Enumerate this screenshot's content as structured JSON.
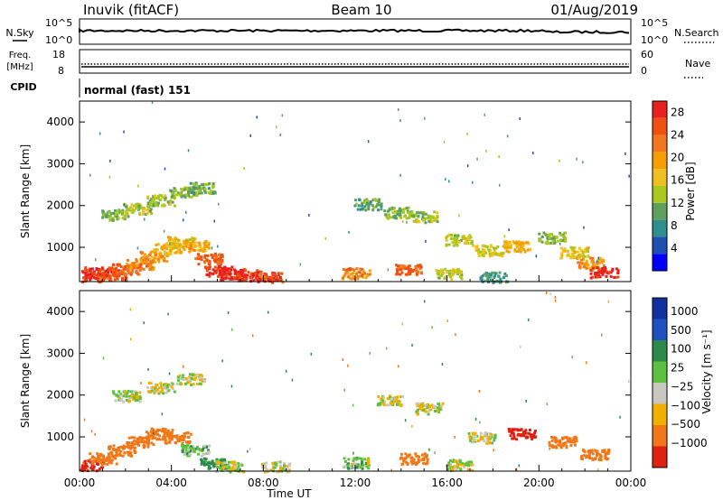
{
  "header": {
    "station": "Inuvik (fitACF)",
    "beam": "Beam 10",
    "date": "01/Aug/2019"
  },
  "noise_panel": {
    "left_label": "N.Sky",
    "left_ticks": [
      "10^5",
      "10^0"
    ],
    "right_ticks": [
      "10^5",
      "10^0"
    ],
    "right_label": "N.Search"
  },
  "freq_panel": {
    "left_label_1": "Freq.",
    "left_label_2": "[MHz]",
    "left_ticks": [
      "18",
      "8"
    ],
    "right_ticks": [
      "60",
      "0"
    ],
    "right_label": "Nave"
  },
  "cpid_panel": {
    "label": "CPID",
    "mode": "normal (fast) 151"
  },
  "chart_data": [
    {
      "type": "heatmap",
      "title": "",
      "xlabel": "",
      "ylabel": "Slant Range [km]",
      "xlim": [
        0,
        24
      ],
      "ylim": [
        180,
        4500
      ],
      "yticks": [
        "1000",
        "2000",
        "3000",
        "4000"
      ],
      "colorbar_label": "Power [dB]",
      "colorbar_ticks": [
        "4",
        "8",
        "12",
        "16",
        "20",
        "24",
        "28"
      ],
      "colorscale": [
        "#0000ff",
        "#1f4fb0",
        "#2f8f8f",
        "#5fa05f",
        "#a8c81e",
        "#f0c020",
        "#f5a000",
        "#f07820",
        "#ee5010",
        "#e82020"
      ],
      "features": [
        {
          "t": 0.3,
          "r": 330,
          "v": 27
        },
        {
          "t": 0.8,
          "r": 420,
          "v": 28
        },
        {
          "t": 1.4,
          "r": 350,
          "v": 26
        },
        {
          "t": 2.0,
          "r": 500,
          "v": 24
        },
        {
          "t": 2.6,
          "r": 620,
          "v": 22
        },
        {
          "t": 3.2,
          "r": 800,
          "v": 20
        },
        {
          "t": 3.8,
          "r": 1000,
          "v": 18
        },
        {
          "t": 4.4,
          "r": 1150,
          "v": 17
        },
        {
          "t": 5.0,
          "r": 1050,
          "v": 19
        },
        {
          "t": 5.6,
          "r": 750,
          "v": 24
        },
        {
          "t": 6.0,
          "r": 450,
          "v": 28
        },
        {
          "t": 6.6,
          "r": 380,
          "v": 29
        },
        {
          "t": 7.4,
          "r": 350,
          "v": 27
        },
        {
          "t": 8.2,
          "r": 300,
          "v": 26
        },
        {
          "t": 1.5,
          "r": 1800,
          "v": 12
        },
        {
          "t": 2.5,
          "r": 1950,
          "v": 14
        },
        {
          "t": 3.5,
          "r": 2150,
          "v": 13
        },
        {
          "t": 4.5,
          "r": 2350,
          "v": 12
        },
        {
          "t": 5.3,
          "r": 2450,
          "v": 11
        },
        {
          "t": 12.5,
          "r": 2050,
          "v": 10
        },
        {
          "t": 13.8,
          "r": 1850,
          "v": 12
        },
        {
          "t": 15.0,
          "r": 1750,
          "v": 13
        },
        {
          "t": 16.5,
          "r": 1200,
          "v": 14
        },
        {
          "t": 17.8,
          "r": 950,
          "v": 15
        },
        {
          "t": 19.0,
          "r": 1050,
          "v": 18
        },
        {
          "t": 20.5,
          "r": 1250,
          "v": 12
        },
        {
          "t": 21.5,
          "r": 900,
          "v": 16
        },
        {
          "t": 22.2,
          "r": 650,
          "v": 20
        },
        {
          "t": 22.8,
          "r": 420,
          "v": 28
        },
        {
          "t": 12.0,
          "r": 400,
          "v": 22
        },
        {
          "t": 14.3,
          "r": 480,
          "v": 24
        },
        {
          "t": 16.0,
          "r": 380,
          "v": 14
        },
        {
          "t": 18.0,
          "r": 300,
          "v": 9
        }
      ]
    },
    {
      "type": "heatmap",
      "title": "",
      "xlabel": "Time UT",
      "ylabel": "Slant Range [km]",
      "xlim": [
        0,
        24
      ],
      "ylim": [
        180,
        4500
      ],
      "xticks": [
        "00:00",
        "04:00",
        "08:00",
        "12:00",
        "16:00",
        "20:00",
        "00:00"
      ],
      "yticks": [
        "1000",
        "2000",
        "3000",
        "4000"
      ],
      "colorbar_label": "Velocity [m s⁻¹]",
      "colorbar_ticks": [
        "1000",
        "500",
        "100",
        "25",
        "−25",
        "−100",
        "−500",
        "−1000"
      ],
      "colorscale": [
        "#1030a0",
        "#2050c0",
        "#2c8a4a",
        "#5ec040",
        "#c8c8c0",
        "#f0b000",
        "#f07818",
        "#e02010"
      ],
      "features": [
        {
          "t": 0.4,
          "r": 330,
          "v": -600
        },
        {
          "t": 1.0,
          "r": 500,
          "v": -400
        },
        {
          "t": 1.8,
          "r": 700,
          "v": -300
        },
        {
          "t": 2.6,
          "r": 900,
          "v": -250
        },
        {
          "t": 3.4,
          "r": 1100,
          "v": -250
        },
        {
          "t": 4.2,
          "r": 1000,
          "v": -350
        },
        {
          "t": 5.0,
          "r": 700,
          "v": 60
        },
        {
          "t": 5.8,
          "r": 400,
          "v": 150
        },
        {
          "t": 6.5,
          "r": 300,
          "v": 0
        },
        {
          "t": 8.5,
          "r": 300,
          "v": 0
        },
        {
          "t": 2.0,
          "r": 2000,
          "v": 0
        },
        {
          "t": 3.5,
          "r": 2200,
          "v": 0
        },
        {
          "t": 4.8,
          "r": 2400,
          "v": 10
        },
        {
          "t": 13.5,
          "r": 1900,
          "v": 0
        },
        {
          "t": 15.2,
          "r": 1700,
          "v": -10
        },
        {
          "t": 17.5,
          "r": 1000,
          "v": -5
        },
        {
          "t": 19.2,
          "r": 1100,
          "v": -600
        },
        {
          "t": 21.0,
          "r": 900,
          "v": -300
        },
        {
          "t": 22.4,
          "r": 600,
          "v": -400
        },
        {
          "t": 12.0,
          "r": 400,
          "v": 50
        },
        {
          "t": 14.5,
          "r": 500,
          "v": -200
        },
        {
          "t": 16.5,
          "r": 350,
          "v": 0
        }
      ]
    }
  ]
}
